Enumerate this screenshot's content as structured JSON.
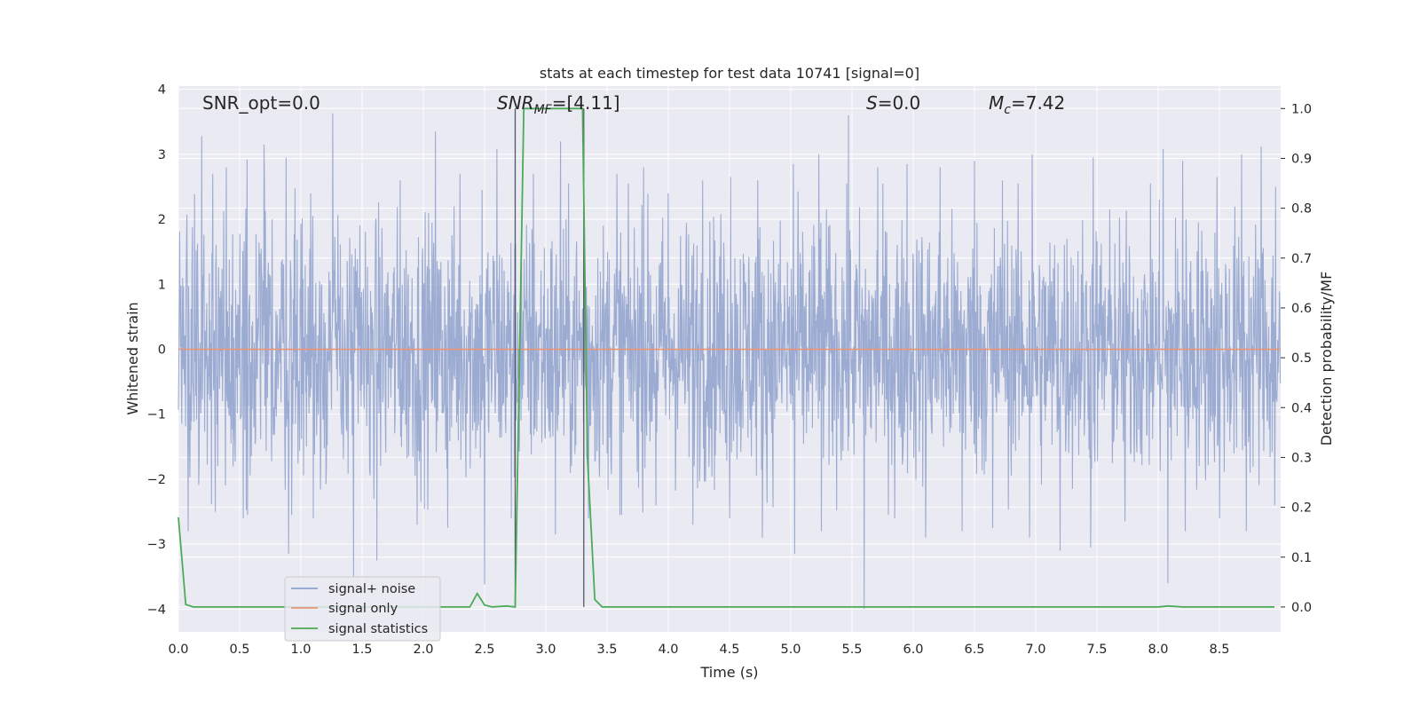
{
  "chart_data": {
    "type": "line",
    "title": "stats at each timestep for test data 10741 [signal=0]",
    "xlabel": "Time (s)",
    "ylabel": "Whitened strain",
    "y2label": "Detection probability/MF",
    "xlim": [
      0.0,
      9.0
    ],
    "ylim": [
      -4.35,
      4.05
    ],
    "y2lim": [
      -0.05,
      1.045
    ],
    "x_ticks": [
      "0.0",
      "0.5",
      "1.0",
      "1.5",
      "2.0",
      "2.5",
      "3.0",
      "3.5",
      "4.0",
      "4.5",
      "5.0",
      "5.5",
      "6.0",
      "6.5",
      "7.0",
      "7.5",
      "8.0",
      "8.5"
    ],
    "y_ticks": [
      "4",
      "3",
      "2",
      "1",
      "0",
      "−1",
      "−2",
      "−3",
      "−4"
    ],
    "y2_ticks": [
      "1.0",
      "0.9",
      "0.8",
      "0.7",
      "0.6",
      "0.5",
      "0.4",
      "0.3",
      "0.2",
      "0.1",
      "0.0"
    ],
    "grid": true,
    "legend_position": "lower-left",
    "annotations": {
      "snr_opt": "SNR_opt=0.0",
      "snr_mf_main": "SNR",
      "snr_mf_sub": "MF",
      "snr_mf_value": "=[4.11]",
      "s_var": "S",
      "s_value": "=0.0",
      "mc_var": "M",
      "mc_sub": "c",
      "mc_value": "=7.42"
    },
    "vlines": [
      2.75,
      3.31
    ],
    "series": [
      {
        "name": "signal+ noise",
        "color": "#8da0cb",
        "description_of_values": "whitened noise fluctuating roughly within ±2 (peaks to ±3.6); envelope points in seconds / strain",
        "peaks_x": [
          0.19,
          0.28,
          0.39,
          0.56,
          0.7,
          0.88,
          1.08,
          1.26,
          1.43,
          1.62,
          1.81,
          2.1,
          2.3,
          2.48,
          2.6,
          2.9,
          3.12,
          3.31,
          3.58,
          3.8,
          4.0,
          4.28,
          4.51,
          4.73,
          5.02,
          5.23,
          5.47,
          5.71,
          5.95,
          6.22,
          6.5,
          6.73,
          6.97,
          7.2,
          7.47,
          7.73,
          8.04,
          8.2,
          8.48,
          8.68,
          8.84,
          8.96
        ],
        "peaks_y": [
          3.28,
          2.7,
          2.8,
          2.92,
          3.15,
          2.95,
          2.4,
          3.63,
          2.9,
          2.85,
          2.6,
          3.35,
          2.7,
          2.45,
          3.08,
          2.7,
          3.2,
          2.55,
          2.7,
          2.8,
          2.4,
          2.6,
          2.65,
          2.6,
          2.85,
          3.0,
          3.6,
          2.8,
          2.85,
          2.8,
          2.9,
          2.6,
          3.0,
          2.65,
          2.95,
          3.2,
          3.08,
          2.9,
          2.65,
          3.0,
          3.12,
          2.5
        ],
        "troughs_x": [
          0.08,
          0.3,
          0.53,
          0.9,
          1.1,
          1.43,
          1.62,
          1.95,
          2.2,
          2.5,
          2.72,
          3.08,
          3.35,
          3.62,
          3.9,
          4.2,
          4.5,
          4.77,
          5.03,
          5.25,
          5.6,
          5.85,
          6.1,
          6.4,
          6.65,
          6.95,
          7.2,
          7.45,
          7.73,
          8.08,
          8.22,
          8.5,
          8.72,
          8.95
        ],
        "troughs_y": [
          -2.8,
          -2.5,
          -2.6,
          -3.15,
          -2.6,
          -3.5,
          -3.25,
          -2.7,
          -2.75,
          -3.62,
          -2.6,
          -2.85,
          -2.6,
          -2.55,
          -2.4,
          -2.7,
          -2.6,
          -2.9,
          -3.15,
          -2.8,
          -4.0,
          -2.6,
          -2.9,
          -2.8,
          -2.75,
          -2.9,
          -3.1,
          -3.05,
          -2.65,
          -3.6,
          -2.8,
          -2.6,
          -2.8,
          -2.4
        ]
      },
      {
        "name": "signal only",
        "color": "#e9957a",
        "x": [
          0.0,
          9.0
        ],
        "y": [
          0.0,
          0.0
        ]
      },
      {
        "name": "signal statistics",
        "color": "#4daa57",
        "axis": "right",
        "x": [
          0.0,
          0.06,
          0.12,
          1.0,
          2.0,
          2.38,
          2.44,
          2.5,
          2.56,
          2.68,
          2.75,
          2.82,
          3.0,
          3.2,
          3.3,
          3.34,
          3.4,
          3.46,
          4.0,
          5.0,
          6.0,
          7.0,
          8.0,
          8.08,
          8.2,
          8.95
        ],
        "y": [
          0.18,
          0.005,
          0.0,
          0.0,
          0.0,
          0.0,
          0.027,
          0.004,
          0.0,
          0.002,
          0.0,
          1.0,
          1.0,
          1.0,
          1.0,
          0.3,
          0.015,
          0.0,
          0.0,
          0.0,
          0.0,
          0.0,
          0.0,
          0.002,
          0.0,
          0.0
        ]
      }
    ]
  }
}
